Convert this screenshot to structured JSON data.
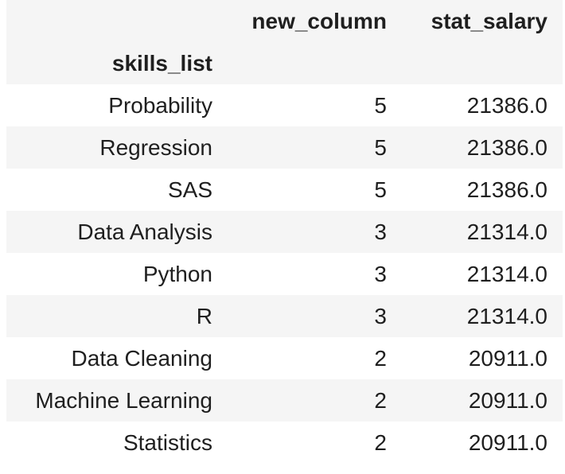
{
  "table": {
    "columns": [
      "new_column",
      "stat_salary"
    ],
    "index_name": "skills_list",
    "rows": [
      {
        "index": "Probability",
        "values": [
          "5",
          "21386.0"
        ]
      },
      {
        "index": "Regression",
        "values": [
          "5",
          "21386.0"
        ]
      },
      {
        "index": "SAS",
        "values": [
          "5",
          "21386.0"
        ]
      },
      {
        "index": "Data Analysis",
        "values": [
          "3",
          "21314.0"
        ]
      },
      {
        "index": "Python",
        "values": [
          "3",
          "21314.0"
        ]
      },
      {
        "index": "R",
        "values": [
          "3",
          "21314.0"
        ]
      },
      {
        "index": "Data Cleaning",
        "values": [
          "2",
          "20911.0"
        ]
      },
      {
        "index": "Machine Learning",
        "values": [
          "2",
          "20911.0"
        ]
      },
      {
        "index": "Statistics",
        "values": [
          "2",
          "20911.0"
        ]
      }
    ]
  }
}
